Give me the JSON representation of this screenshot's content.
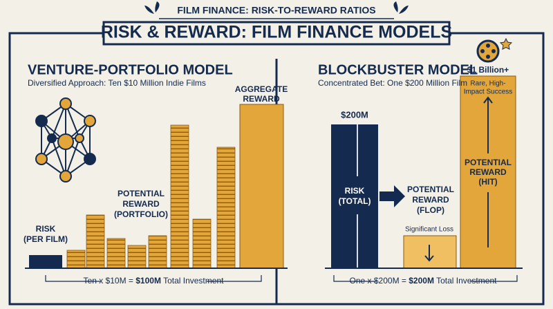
{
  "banner": "FILM FINANCE: RISK-TO-REWARD RATIOS",
  "title": "RISK & REWARD: FILM FINANCE MODELS",
  "left": {
    "title": "VENTURE-PORTFOLIO MODEL",
    "subtitle": "Diversified Approach: Ten $10 Million Indie Films",
    "risk_label": [
      "RISK",
      "(PER FILM)"
    ],
    "reward_label": [
      "POTENTIAL",
      "REWARD",
      "(PORTFOLIO)"
    ],
    "aggregate_label": [
      "AGGREGATE",
      "REWARD"
    ],
    "footer": [
      "Ten x $10M = ",
      "$100M",
      " Total Investment"
    ]
  },
  "right": {
    "title": "BLOCKBUSTER MODEL",
    "subtitle": "Concentrated Bet: One $200 Million Film",
    "risk_amount": "$200M",
    "risk_label": [
      "RISK",
      "(TOTAL)"
    ],
    "flop_label": [
      "POTENTIAL",
      "REWARD",
      "(FLOP)"
    ],
    "flop_note": "Significant Loss",
    "hit_amount": "$1 Billion+",
    "hit_note": [
      "Rare, High-",
      "Impact Success"
    ],
    "hit_label": [
      "POTENTIAL",
      "REWARD",
      "(HIT)"
    ],
    "footer": [
      "One x $200M = ",
      "$200M",
      " Total Investment"
    ]
  }
}
